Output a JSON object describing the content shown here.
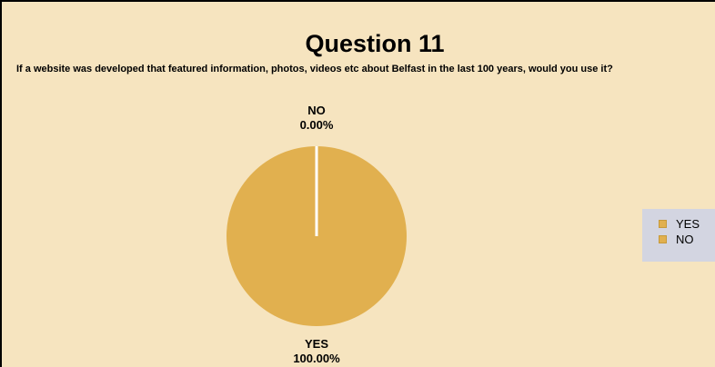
{
  "chart_data": {
    "type": "pie",
    "title": "Question 11",
    "subtitle": "If a website was developed that featured information, photos, videos etc about Belfast in the last 100 years, would you use it?",
    "slices": [
      {
        "label": "YES",
        "value": 100.0,
        "display": "100.00%",
        "color": "#e1b04f"
      },
      {
        "label": "NO",
        "value": 0.0,
        "display": "0.00%",
        "color": "#e1b04f"
      }
    ],
    "legend": {
      "position": "right",
      "entries": [
        "YES",
        "NO"
      ]
    },
    "colors": {
      "background": "#f6e4bf",
      "legend_background": "#d3d5e1",
      "separator": "#ffffff"
    }
  }
}
